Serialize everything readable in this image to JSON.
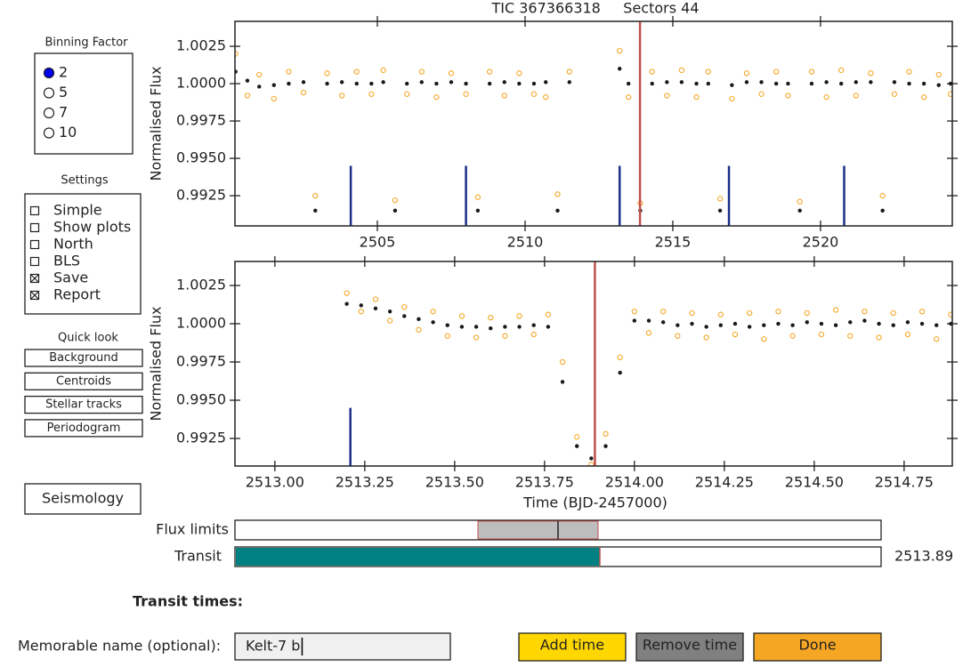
{
  "binning": {
    "title": "Binning Factor",
    "options": [
      "2",
      "5",
      "7",
      "10"
    ],
    "selected": 0
  },
  "settings": {
    "title": "Settings",
    "options": [
      {
        "label": "Simple",
        "checked": false
      },
      {
        "label": "Show plots",
        "checked": false
      },
      {
        "label": "North",
        "checked": false
      },
      {
        "label": "BLS",
        "checked": false
      },
      {
        "label": "Save",
        "checked": true
      },
      {
        "label": "Report",
        "checked": true
      }
    ]
  },
  "quick_look": {
    "title": "Quick look",
    "buttons": [
      "Background",
      "Centroids",
      "Stellar tracks",
      "Periodogram"
    ]
  },
  "seismology": "Seismology",
  "sliders": {
    "flux_limits": {
      "label": "Flux limits"
    },
    "transit": {
      "label": "Transit",
      "value": 2513.89
    }
  },
  "transit_times_label": "Transit times:",
  "name_field": {
    "label": "Memorable name (optional):",
    "value": "Kelt-7 b"
  },
  "buttons": [
    {
      "label": "Add time",
      "color": "#ffd700"
    },
    {
      "label": "Remove time",
      "color": "#808080"
    },
    {
      "label": "Done",
      "color": "#f5a623"
    }
  ],
  "chart_data": [
    {
      "type": "scatter",
      "title": "TIC 367366318     Sectors 44",
      "ylabel": "Normalised Flux",
      "xlim": [
        2500.18,
        2524.46
      ],
      "ylim": [
        0.99048,
        1.00417
      ],
      "xticks": [
        2505,
        2510,
        2515,
        2520
      ],
      "yticks": [
        0.9925,
        {
          "value": 0.995,
          "label": "0.9950"
        },
        {
          "value": 0.9975,
          "label": "0.9975"
        },
        {
          "value": 1.0,
          "label": "1.0000"
        },
        1.0025
      ],
      "x": [
        2500.2,
        2500.6,
        2501.0,
        2501.5,
        2502.0,
        2502.5,
        2502.9,
        2503.3,
        2503.8,
        2504.3,
        2504.8,
        2505.2,
        2505.6,
        2506.0,
        2506.5,
        2507.0,
        2507.5,
        2508.0,
        2508.4,
        2508.8,
        2509.3,
        2509.8,
        2510.3,
        2510.7,
        2511.1,
        2511.5,
        2513.2,
        2513.5,
        2513.9,
        2514.3,
        2514.8,
        2515.3,
        2515.8,
        2516.2,
        2516.6,
        2517.0,
        2517.5,
        2518.0,
        2518.5,
        2518.9,
        2519.3,
        2519.7,
        2520.2,
        2520.7,
        2521.2,
        2521.7,
        2522.1,
        2522.5,
        2523.0,
        2523.5,
        2524.0,
        2524.4
      ],
      "series": [
        {
          "color": "#f5a623",
          "marker": "open",
          "values": [
            1.002,
            0.9992,
            1.0006,
            0.999,
            1.0008,
            0.9994,
            0.9925,
            1.0007,
            0.9992,
            1.0008,
            0.9993,
            1.0009,
            0.9922,
            0.9993,
            1.0008,
            0.9991,
            1.0007,
            0.9993,
            0.9924,
            1.0008,
            0.9992,
            1.0007,
            0.9993,
            0.9991,
            0.9926,
            1.0008,
            1.0022,
            0.9991,
            0.992,
            1.0008,
            0.9992,
            1.0009,
            0.9991,
            1.0008,
            0.9923,
            0.999,
            1.0007,
            0.9993,
            1.0008,
            0.9992,
            0.9921,
            1.0008,
            0.9991,
            1.0009,
            0.9992,
            1.0007,
            0.9925,
            0.9993,
            1.0008,
            0.9991,
            1.0006,
            0.9993
          ]
        },
        {
          "color": "#1a1a1a",
          "marker": "filled",
          "values": [
            1.0008,
            1.0002,
            0.9998,
            0.9999,
            1.0,
            1.0001,
            0.9915,
            1.0,
            1.0001,
            1.0,
            1.0,
            1.0001,
            0.9915,
            1.0,
            1.0001,
            1.0,
            1.0001,
            1.0,
            0.9915,
            1.0,
            1.0001,
            1.0,
            1.0,
            1.0001,
            0.9915,
            1.0001,
            1.001,
            1.0,
            0.9915,
            1.0,
            1.0001,
            1.0001,
            1.0,
            1.0,
            0.9915,
            0.9999,
            1.0001,
            1.0001,
            1.0,
            1.0,
            0.9915,
            1.0,
            1.0001,
            1.0,
            1.0001,
            1.0001,
            0.9915,
            1.0001,
            1.0,
            1.0,
            0.9999,
            1.0
          ]
        }
      ],
      "transit_markers": {
        "color": "#1a2f8a",
        "top": 0.9945,
        "x": [
          2504.1,
          2508.0,
          2513.2,
          2516.9,
          2520.8
        ]
      },
      "current_transit": {
        "color": "#c0504d",
        "x": 2513.89
      }
    },
    {
      "type": "scatter",
      "ylabel": "Normalised Flux",
      "xlabel": "Time (BJD-2457000)",
      "xlim": [
        2512.889,
        2514.884
      ],
      "ylim": [
        0.9907,
        1.00407
      ],
      "xticks": [
        {
          "value": 2513.0,
          "label": "2513.00"
        },
        2513.25,
        {
          "value": 2513.5,
          "label": "2513.50"
        },
        2513.75,
        {
          "value": 2514.0,
          "label": "2514.00"
        },
        2514.25,
        {
          "value": 2514.5,
          "label": "2514.50"
        },
        2514.75
      ],
      "yticks": [
        0.9925,
        {
          "value": 0.995,
          "label": "0.9950"
        },
        {
          "value": 0.9975,
          "label": "0.9975"
        },
        {
          "value": 1.0,
          "label": "1.0000"
        },
        1.0025
      ],
      "x": [
        2513.2,
        2513.24,
        2513.28,
        2513.32,
        2513.36,
        2513.4,
        2513.44,
        2513.48,
        2513.52,
        2513.56,
        2513.6,
        2513.64,
        2513.68,
        2513.72,
        2513.76,
        2513.8,
        2513.84,
        2513.88,
        2513.92,
        2513.96,
        2514.0,
        2514.04,
        2514.08,
        2514.12,
        2514.16,
        2514.2,
        2514.24,
        2514.28,
        2514.32,
        2514.36,
        2514.4,
        2514.44,
        2514.48,
        2514.52,
        2514.56,
        2514.6,
        2514.64,
        2514.68,
        2514.72,
        2514.76,
        2514.8,
        2514.84,
        2514.88
      ],
      "series": [
        {
          "color": "#f5a623",
          "marker": "open",
          "values": [
            1.002,
            1.0008,
            1.0016,
            1.0002,
            1.0011,
            0.9996,
            1.0008,
            0.9992,
            1.0005,
            0.9991,
            1.0004,
            0.9992,
            1.0005,
            0.9993,
            1.0006,
            0.9975,
            0.9926,
            0.9908,
            0.9928,
            0.9978,
            1.0008,
            0.9994,
            1.0008,
            0.9992,
            1.0007,
            0.9991,
            1.0006,
            0.9993,
            1.0007,
            0.999,
            1.0008,
            0.9992,
            1.0007,
            0.9993,
            1.0009,
            0.9992,
            1.0008,
            0.9991,
            1.0007,
            0.9993,
            1.0008,
            0.999,
            1.0006
          ]
        },
        {
          "color": "#1a1a1a",
          "marker": "filled",
          "values": [
            1.0013,
            1.0012,
            1.001,
            1.0008,
            1.0005,
            1.0003,
            1.0001,
            0.9999,
            0.9998,
            0.9998,
            0.9997,
            0.9998,
            0.9998,
            0.9999,
            0.9998,
            0.9962,
            0.992,
            0.9912,
            0.992,
            0.9968,
            1.0002,
            1.0002,
            1.0001,
            0.9999,
            1.0,
            0.9998,
            0.9999,
            1.0,
            0.9998,
            0.9999,
            1.0,
            0.9999,
            1.0001,
            1.0,
            0.9999,
            1.0001,
            1.0002,
            1.0,
            0.9999,
            1.0001,
            1.0,
            0.9999,
            1.0
          ]
        }
      ],
      "transit_markers": {
        "color": "#1a2f8a",
        "top": 0.9945,
        "x": [
          2513.21
        ]
      },
      "current_transit": {
        "color": "#c0504d",
        "x": 2513.89
      }
    }
  ]
}
